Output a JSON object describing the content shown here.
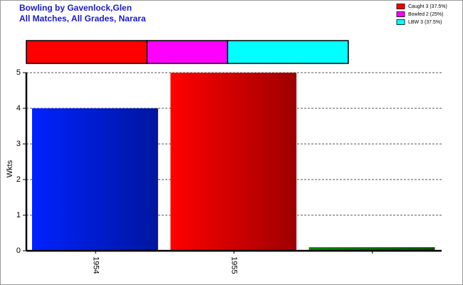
{
  "chart_data": [
    {
      "type": "stacked-bar",
      "series": [
        {
          "name": "Caught 3 (37.5%)",
          "color": "#ff0000",
          "values": [
            3
          ]
        },
        {
          "name": "Bowled 2 (25%)",
          "color": "#ff00ff",
          "values": [
            2
          ]
        },
        {
          "name": "LBW 3 (37.5%)",
          "color": "#00ffff",
          "values": [
            3
          ]
        }
      ]
    },
    {
      "type": "bar",
      "title": "Bowling by Gavenlock,Glen",
      "subtitle": "All Matches, All Grades, Narara",
      "y_label": "Wkts",
      "categories": [
        "1954",
        "1955",
        null
      ],
      "values": [
        4,
        5,
        0.1
      ],
      "colors": [
        "#0022ff",
        "#ff0000",
        "#008800"
      ],
      "ylim": [
        0,
        5
      ],
      "yticks": [
        0,
        1,
        2,
        3,
        4,
        5
      ],
      "grid": true
    }
  ]
}
